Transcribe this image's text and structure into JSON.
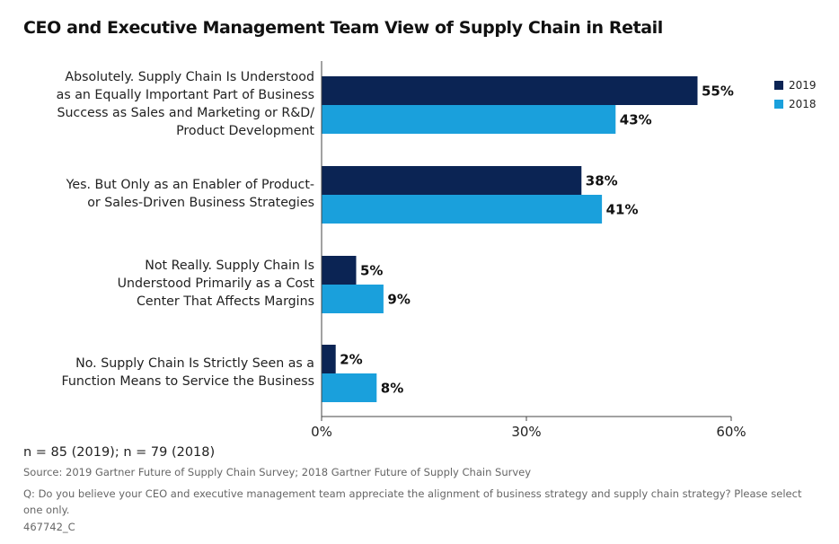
{
  "title": "CEO and Executive Management Team View of Supply Chain in Retail",
  "colors": {
    "s2019": "#0b2454",
    "s2018": "#1aa0dc",
    "axis": "#444444"
  },
  "legend": [
    {
      "name": "2019",
      "color": "#0b2454"
    },
    {
      "name": "2018",
      "color": "#1aa0dc"
    }
  ],
  "chart_data": {
    "type": "bar",
    "orientation": "horizontal",
    "title": "CEO and Executive Management Team View of Supply Chain in Retail",
    "categories": [
      "Absolutely. Supply Chain Is Understood as an Equally Important Part of Business Success as Sales and Marketing or R&D/ Product Development",
      "Yes. But Only as an Enabler of Product- or Sales-Driven Business Strategies",
      "Not Really. Supply Chain Is Understood Primarily as a Cost Center That Affects Margins",
      "No. Supply Chain Is Strictly Seen as a Function Means to Service the Business"
    ],
    "category_lines": [
      [
        "Absolutely. Supply Chain Is Understood",
        "as an Equally Important Part of Business",
        "Success as Sales and Marketing or R&D/",
        "Product Development"
      ],
      [
        "Yes. But Only as an Enabler of Product-",
        "or Sales-Driven Business Strategies"
      ],
      [
        "Not Really. Supply Chain Is",
        "Understood Primarily as a Cost",
        "Center That Affects Margins"
      ],
      [
        "No. Supply Chain Is Strictly Seen as a",
        "Function Means to Service the Business"
      ]
    ],
    "series": [
      {
        "name": "2019",
        "values": [
          55,
          38,
          5,
          2
        ],
        "labels": [
          "55%",
          "38%",
          "5%",
          "2%"
        ]
      },
      {
        "name": "2018",
        "values": [
          43,
          41,
          9,
          8
        ],
        "labels": [
          "43%",
          "41%",
          "9%",
          "8%"
        ]
      }
    ],
    "xlim": [
      0,
      60
    ],
    "xticks": [
      0,
      30,
      60
    ],
    "xtick_labels": [
      "0%",
      "30%",
      "60%"
    ],
    "grid": false,
    "legend_position": "top-right"
  },
  "footer": {
    "n": "n = 85 (2019); n = 79 (2018)",
    "source": "Source: 2019 Gartner Future of Supply Chain Survey; 2018 Gartner Future of Supply Chain Survey",
    "question": "Q: Do you believe your CEO and executive management team appreciate the alignment of business strategy and supply chain strategy? Please select one only.",
    "code": "467742_C"
  }
}
